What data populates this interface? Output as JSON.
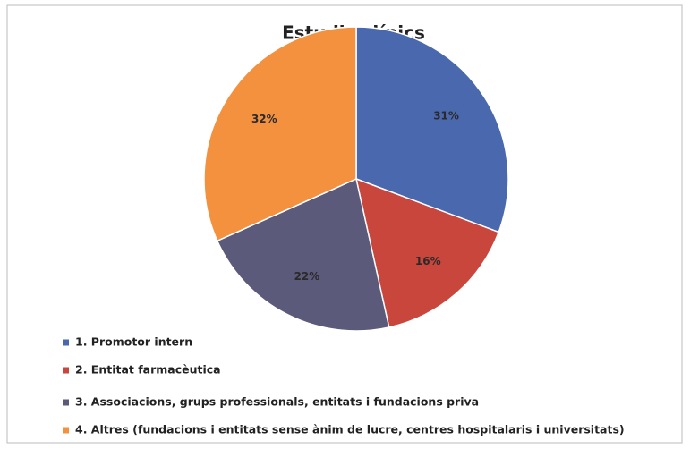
{
  "chart_data": {
    "type": "pie",
    "title": "Estudis clínics",
    "categories": [
      "1. Promotor intern",
      "2. Entitat farmacèutica",
      "3. Associacions, grups professionals, entitats i fundacions priva",
      "4. Altres (fundacions i entitats sense ànim de lucre, centres hospitalaris i universitats)"
    ],
    "values": [
      31,
      16,
      22,
      32
    ],
    "value_labels": [
      "31%",
      "16%",
      "22%",
      "32%"
    ],
    "colors": [
      "#4a68ae",
      "#c9463c",
      "#5b5a7a",
      "#f3913f"
    ],
    "legend": "bottom"
  }
}
